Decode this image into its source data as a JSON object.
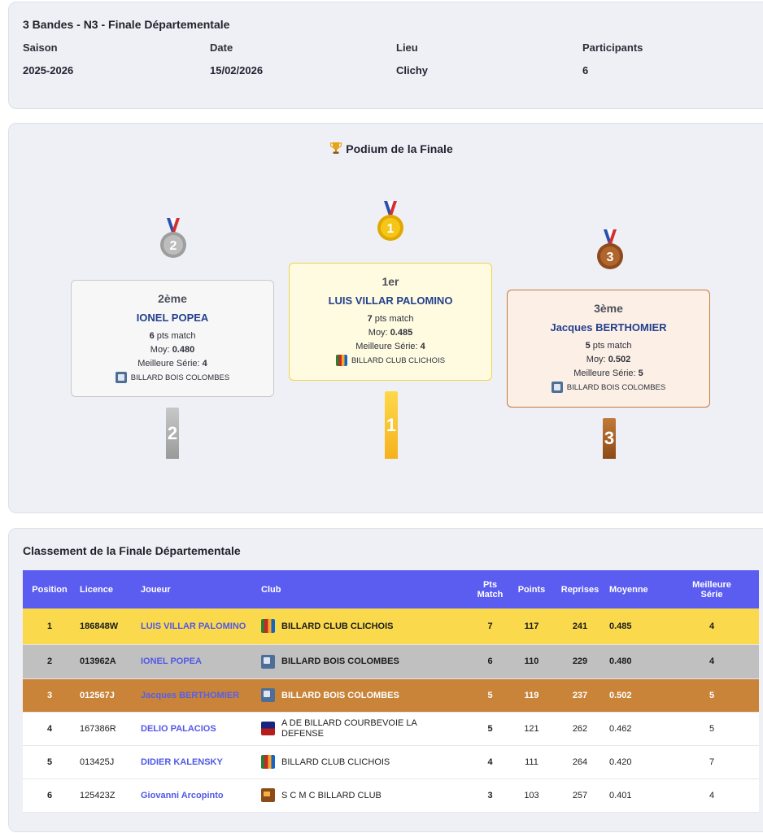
{
  "info": {
    "title": "3 Bandes - N3 - Finale Départementale",
    "fields": [
      {
        "label": "Saison",
        "value": "2025-2026"
      },
      {
        "label": "Date",
        "value": "15/02/2026"
      },
      {
        "label": "Lieu",
        "value": "Clichy"
      },
      {
        "label": "Participants",
        "value": "6"
      }
    ]
  },
  "podium": {
    "title": "Podium de la Finale",
    "trophy_icon": "trophy-icon",
    "second": {
      "rank": "2ème",
      "name": "IONEL POPEA",
      "pts": "6",
      "pts_label": "pts match",
      "moy_label": "Moy:",
      "moy": "0.480",
      "serie_label": "Meilleure Série:",
      "serie": "4",
      "club": "BILLARD BOIS COLOMBES",
      "pillar": "2",
      "medal": "2"
    },
    "first": {
      "rank": "1er",
      "name": "LUIS VILLAR PALOMINO",
      "pts": "7",
      "pts_label": "pts match",
      "moy_label": "Moy:",
      "moy": "0.485",
      "serie_label": "Meilleure Série:",
      "serie": "4",
      "club": "BILLARD CLUB CLICHOIS",
      "pillar": "1",
      "medal": "1"
    },
    "third": {
      "rank": "3ème",
      "name": "Jacques BERTHOMIER",
      "pts": "5",
      "pts_label": "pts match",
      "moy_label": "Moy:",
      "moy": "0.502",
      "serie_label": "Meilleure Série:",
      "serie": "5",
      "club": "BILLARD BOIS COLOMBES",
      "pillar": "3",
      "medal": "3"
    },
    "colors": {
      "gold": "#f5c518",
      "silver": "#a9a9a9",
      "bronze": "#b0652c"
    }
  },
  "ranking": {
    "title": "Classement de la Finale Départementale",
    "headers": {
      "position": "Position",
      "licence": "Licence",
      "joueur": "Joueur",
      "club": "Club",
      "pts_match_1": "Pts",
      "pts_match_2": "Match",
      "points": "Points",
      "reprises": "Reprises",
      "moyenne": "Moyenne",
      "serie_1": "Meilleure",
      "serie_2": "Série"
    },
    "rows": [
      {
        "position": "1",
        "licence": "186848W",
        "joueur": "LUIS VILLAR PALOMINO",
        "club": "BILLARD CLUB CLICHOIS",
        "pts_match": "7",
        "points": "117",
        "reprises": "241",
        "moyenne": "0.485",
        "serie": "4"
      },
      {
        "position": "2",
        "licence": "013962A",
        "joueur": "IONEL POPEA",
        "club": "BILLARD BOIS COLOMBES",
        "pts_match": "6",
        "points": "110",
        "reprises": "229",
        "moyenne": "0.480",
        "serie": "4"
      },
      {
        "position": "3",
        "licence": "012567J",
        "joueur": "Jacques BERTHOMIER",
        "club": "BILLARD BOIS COLOMBES",
        "pts_match": "5",
        "points": "119",
        "reprises": "237",
        "moyenne": "0.502",
        "serie": "5"
      },
      {
        "position": "4",
        "licence": "167386R",
        "joueur": "DELIO PALACIOS",
        "club": "A DE BILLARD COURBEVOIE LA DEFENSE",
        "pts_match": "5",
        "points": "121",
        "reprises": "262",
        "moyenne": "0.462",
        "serie": "5"
      },
      {
        "position": "5",
        "licence": "013425J",
        "joueur": "DIDIER KALENSKY",
        "club": "BILLARD CLUB CLICHOIS",
        "pts_match": "4",
        "points": "111",
        "reprises": "264",
        "moyenne": "0.420",
        "serie": "7"
      },
      {
        "position": "6",
        "licence": "125423Z",
        "joueur": "Giovanni Arcopinto",
        "club": "S C M C BILLARD CLUB",
        "pts_match": "3",
        "points": "103",
        "reprises": "257",
        "moyenne": "0.401",
        "serie": "4"
      }
    ],
    "colors": {
      "header": "#5b5cf0",
      "first": "#fad94d",
      "second": "#c0c0c0",
      "third": "#c98439"
    }
  }
}
